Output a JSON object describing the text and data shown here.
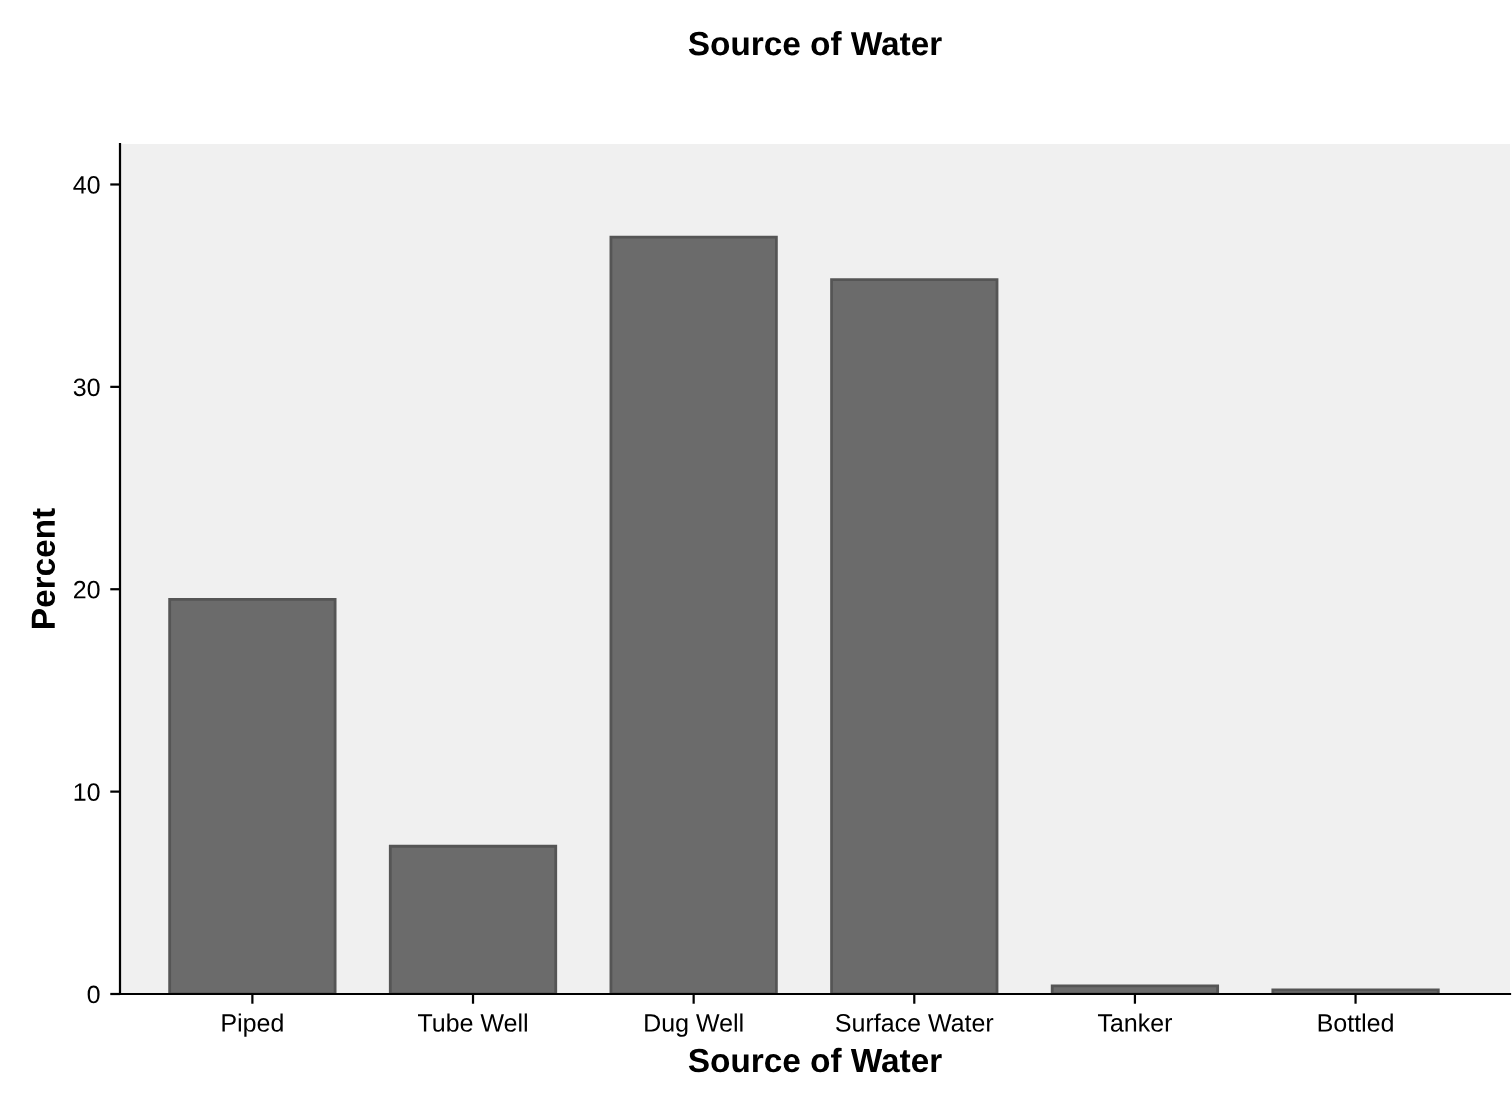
{
  "chart_data": {
    "type": "bar",
    "title": "Source of Water",
    "xlabel": "Source of Water",
    "ylabel": "Percent",
    "categories": [
      "Piped",
      "Tube Well",
      "Dug Well",
      "Surface Water",
      "Tanker",
      "Bottled"
    ],
    "values": [
      19.5,
      7.3,
      37.4,
      35.3,
      0.4,
      0.2
    ],
    "color": "#6b6b6b",
    "ylim": [
      0,
      42
    ],
    "yticks": [
      0,
      10,
      20,
      30,
      40
    ],
    "grid": false,
    "legend": false
  }
}
